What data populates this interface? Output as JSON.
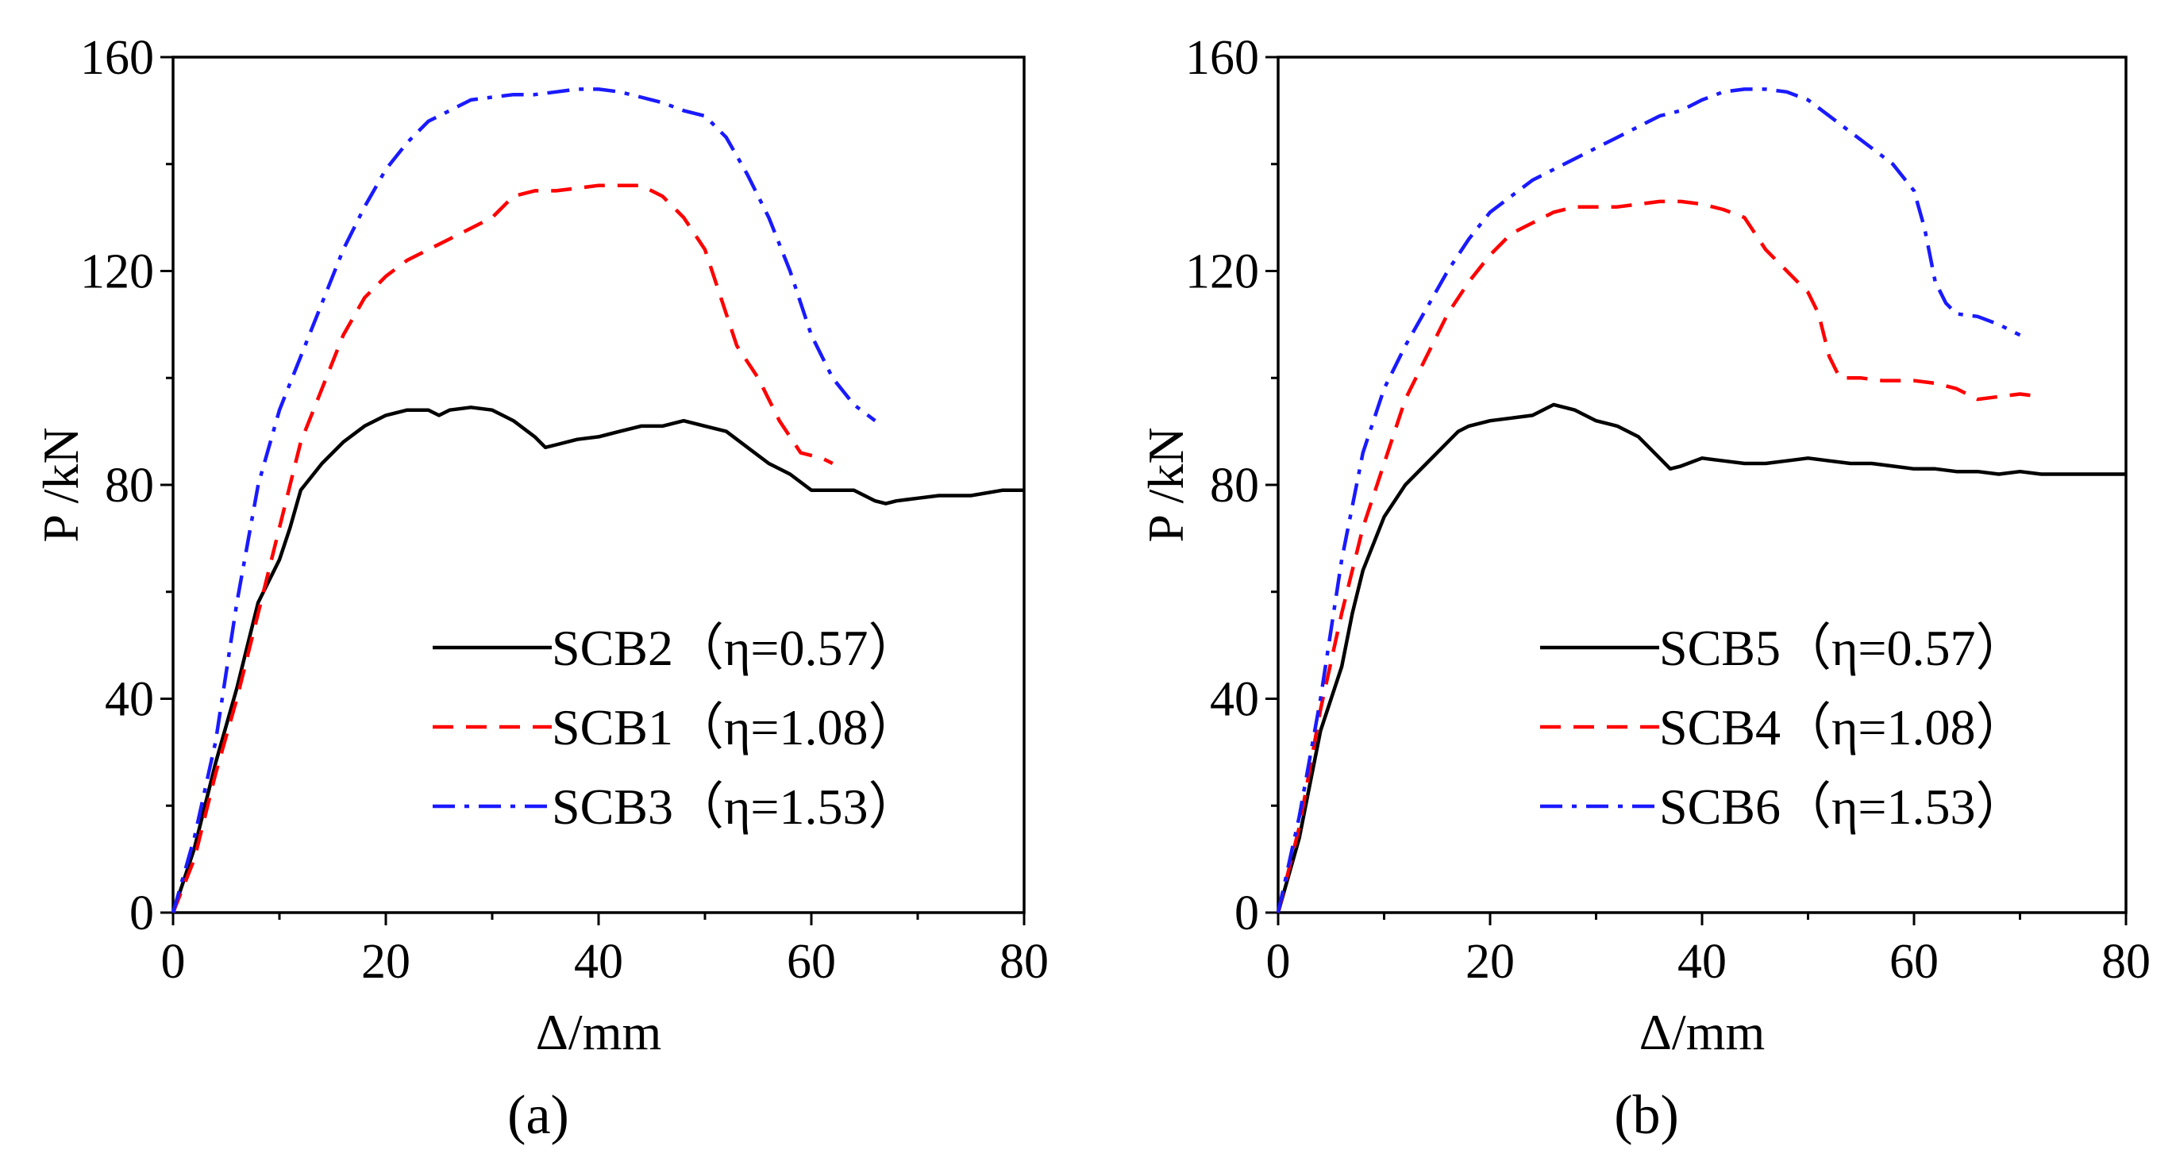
{
  "chart_data": [
    {
      "type": "line",
      "panel_label": "(a)",
      "xlabel": "Δ/mm",
      "ylabel": "P /kN",
      "xlim": [
        0,
        80
      ],
      "ylim": [
        0,
        160
      ],
      "xticks": [
        0,
        20,
        40,
        60,
        80
      ],
      "yticks": [
        0,
        40,
        80,
        120,
        160
      ],
      "grid": false,
      "legend_position": "bottom-right",
      "series": [
        {
          "name": "SCB2（η=0.57）",
          "color": "#000000",
          "style": "solid",
          "points": [
            [
              0,
              0
            ],
            [
              2,
              12
            ],
            [
              4,
              28
            ],
            [
              6,
              42
            ],
            [
              7,
              50
            ],
            [
              8,
              58
            ],
            [
              10,
              66
            ],
            [
              11,
              72
            ],
            [
              12,
              79
            ],
            [
              14,
              84
            ],
            [
              16,
              88
            ],
            [
              18,
              91
            ],
            [
              20,
              93
            ],
            [
              22,
              94
            ],
            [
              24,
              94
            ],
            [
              25,
              93
            ],
            [
              26,
              94
            ],
            [
              28,
              94.5
            ],
            [
              30,
              94
            ],
            [
              32,
              92
            ],
            [
              34,
              89
            ],
            [
              35,
              87
            ],
            [
              36,
              87.5
            ],
            [
              38,
              88.5
            ],
            [
              40,
              89
            ],
            [
              42,
              90
            ],
            [
              44,
              91
            ],
            [
              46,
              91
            ],
            [
              48,
              92
            ],
            [
              50,
              91
            ],
            [
              52,
              90
            ],
            [
              54,
              87
            ],
            [
              56,
              84
            ],
            [
              58,
              82
            ],
            [
              60,
              79
            ],
            [
              62,
              79
            ],
            [
              64,
              79
            ],
            [
              66,
              77
            ],
            [
              67,
              76.5
            ],
            [
              68,
              77
            ],
            [
              70,
              77.5
            ],
            [
              72,
              78
            ],
            [
              75,
              78
            ],
            [
              78,
              79
            ],
            [
              80,
              79
            ]
          ]
        },
        {
          "name": "SCB1（η=1.08）",
          "color": "#ff0000",
          "style": "dashed",
          "points": [
            [
              0,
              0
            ],
            [
              2,
              10
            ],
            [
              4,
              26
            ],
            [
              6,
              40
            ],
            [
              8,
              56
            ],
            [
              10,
              72
            ],
            [
              12,
              88
            ],
            [
              14,
              98
            ],
            [
              16,
              108
            ],
            [
              18,
              115
            ],
            [
              20,
              119
            ],
            [
              22,
              122
            ],
            [
              24,
              124
            ],
            [
              26,
              126
            ],
            [
              28,
              128
            ],
            [
              30,
              130
            ],
            [
              32,
              134
            ],
            [
              34,
              135
            ],
            [
              36,
              135
            ],
            [
              38,
              135.5
            ],
            [
              40,
              136
            ],
            [
              42,
              136
            ],
            [
              44,
              136
            ],
            [
              46,
              134
            ],
            [
              48,
              130
            ],
            [
              50,
              124
            ],
            [
              51,
              118
            ],
            [
              52,
              112
            ],
            [
              53,
              106
            ],
            [
              55,
              100
            ],
            [
              57,
              92
            ],
            [
              59,
              86
            ],
            [
              61,
              85
            ],
            [
              62,
              84
            ]
          ]
        },
        {
          "name": "SCB3（η=1.53）",
          "color": "#1a1aff",
          "style": "dashdot",
          "points": [
            [
              0,
              0
            ],
            [
              2,
              14
            ],
            [
              4,
              32
            ],
            [
              6,
              58
            ],
            [
              8,
              80
            ],
            [
              10,
              94
            ],
            [
              12,
              104
            ],
            [
              14,
              114
            ],
            [
              16,
              124
            ],
            [
              18,
              132
            ],
            [
              20,
              139
            ],
            [
              22,
              144
            ],
            [
              24,
              148
            ],
            [
              26,
              150
            ],
            [
              28,
              152
            ],
            [
              30,
              152.5
            ],
            [
              32,
              153
            ],
            [
              34,
              153
            ],
            [
              36,
              153.5
            ],
            [
              38,
              154
            ],
            [
              40,
              154
            ],
            [
              42,
              153.5
            ],
            [
              44,
              152.5
            ],
            [
              46,
              151.5
            ],
            [
              48,
              150
            ],
            [
              50,
              149
            ],
            [
              52,
              145
            ],
            [
              54,
              138
            ],
            [
              56,
              130
            ],
            [
              58,
              120
            ],
            [
              60,
              108
            ],
            [
              62,
              100
            ],
            [
              64,
              95
            ],
            [
              66,
              92
            ]
          ]
        }
      ]
    },
    {
      "type": "line",
      "panel_label": "(b)",
      "xlabel": "Δ/mm",
      "ylabel": "P /kN",
      "xlim": [
        0,
        80
      ],
      "ylim": [
        0,
        160
      ],
      "xticks": [
        0,
        20,
        40,
        60,
        80
      ],
      "yticks": [
        0,
        40,
        80,
        120,
        160
      ],
      "grid": false,
      "legend_position": "bottom-right",
      "series": [
        {
          "name": "SCB5（η=0.57）",
          "color": "#000000",
          "style": "solid",
          "points": [
            [
              0,
              0
            ],
            [
              2,
              14
            ],
            [
              3,
              24
            ],
            [
              4,
              34
            ],
            [
              6,
              46
            ],
            [
              7,
              56
            ],
            [
              8,
              64
            ],
            [
              10,
              74
            ],
            [
              12,
              80
            ],
            [
              14,
              84
            ],
            [
              16,
              88
            ],
            [
              17,
              90
            ],
            [
              18,
              91
            ],
            [
              20,
              92
            ],
            [
              22,
              92.5
            ],
            [
              24,
              93
            ],
            [
              26,
              95
            ],
            [
              28,
              94
            ],
            [
              30,
              92
            ],
            [
              32,
              91
            ],
            [
              34,
              89
            ],
            [
              36,
              85
            ],
            [
              37,
              83
            ],
            [
              38,
              83.5
            ],
            [
              40,
              85
            ],
            [
              42,
              84.5
            ],
            [
              44,
              84
            ],
            [
              46,
              84
            ],
            [
              48,
              84.5
            ],
            [
              50,
              85
            ],
            [
              52,
              84.5
            ],
            [
              54,
              84
            ],
            [
              56,
              84
            ],
            [
              58,
              83.5
            ],
            [
              60,
              83
            ],
            [
              62,
              83
            ],
            [
              64,
              82.5
            ],
            [
              66,
              82.5
            ],
            [
              68,
              82
            ],
            [
              70,
              82.5
            ],
            [
              72,
              82
            ],
            [
              76,
              82
            ],
            [
              80,
              82
            ]
          ]
        },
        {
          "name": "SCB4（η=1.08）",
          "color": "#ff0000",
          "style": "dashed",
          "points": [
            [
              0,
              0
            ],
            [
              2,
              16
            ],
            [
              4,
              38
            ],
            [
              6,
              56
            ],
            [
              8,
              72
            ],
            [
              10,
              84
            ],
            [
              12,
              96
            ],
            [
              14,
              104
            ],
            [
              16,
              112
            ],
            [
              18,
              118
            ],
            [
              20,
              123
            ],
            [
              22,
              127
            ],
            [
              24,
              129
            ],
            [
              26,
              131
            ],
            [
              28,
              132
            ],
            [
              30,
              132
            ],
            [
              32,
              132
            ],
            [
              34,
              132.5
            ],
            [
              36,
              133
            ],
            [
              38,
              133
            ],
            [
              40,
              132.5
            ],
            [
              42,
              131.5
            ],
            [
              44,
              130
            ],
            [
              46,
              124
            ],
            [
              48,
              120
            ],
            [
              50,
              116
            ],
            [
              51,
              112
            ],
            [
              52,
              104
            ],
            [
              53,
              100
            ],
            [
              55,
              100
            ],
            [
              57,
              99.5
            ],
            [
              60,
              99.5
            ],
            [
              62,
              99
            ],
            [
              64,
              98
            ],
            [
              66,
              96
            ],
            [
              68,
              96.5
            ],
            [
              70,
              97
            ],
            [
              72,
              96.5
            ]
          ]
        },
        {
          "name": "SCB6（η=1.53）",
          "color": "#1a1aff",
          "style": "dashdot",
          "points": [
            [
              0,
              0
            ],
            [
              2,
              18
            ],
            [
              4,
              40
            ],
            [
              6,
              66
            ],
            [
              8,
              86
            ],
            [
              10,
              98
            ],
            [
              12,
              106
            ],
            [
              14,
              113
            ],
            [
              16,
              120
            ],
            [
              18,
              126
            ],
            [
              20,
              131
            ],
            [
              22,
              134
            ],
            [
              24,
              137
            ],
            [
              26,
              139
            ],
            [
              28,
              141
            ],
            [
              30,
              143
            ],
            [
              32,
              145
            ],
            [
              34,
              147
            ],
            [
              36,
              149
            ],
            [
              38,
              150
            ],
            [
              40,
              152
            ],
            [
              42,
              153.5
            ],
            [
              44,
              154
            ],
            [
              46,
              154
            ],
            [
              48,
              153.5
            ],
            [
              50,
              152
            ],
            [
              52,
              149
            ],
            [
              54,
              146
            ],
            [
              56,
              143
            ],
            [
              58,
              140
            ],
            [
              60,
              135
            ],
            [
              61,
              128
            ],
            [
              62,
              118
            ],
            [
              63,
              114
            ],
            [
              64,
              112
            ],
            [
              66,
              111.5
            ],
            [
              68,
              110
            ],
            [
              70,
              108
            ]
          ]
        }
      ]
    }
  ]
}
